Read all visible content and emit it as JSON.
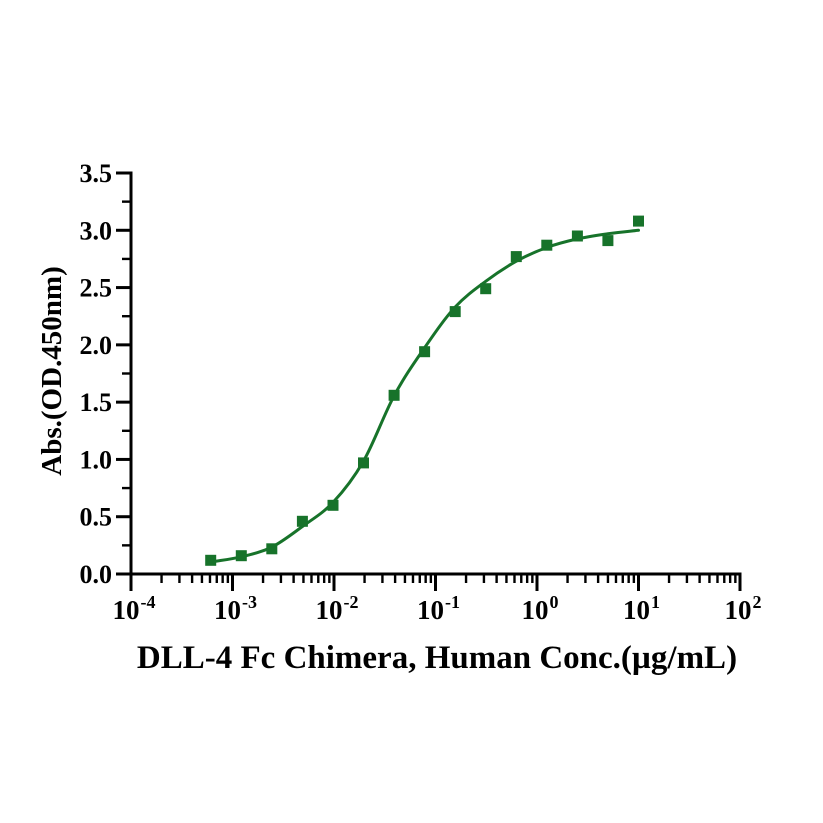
{
  "figure": {
    "background_color": "#ffffff",
    "text_color": "#000000"
  },
  "chart_data": {
    "type": "scatter",
    "title": "",
    "xlabel": "DLL-4 Fc Chimera, Human Conc.(µg/mL)",
    "ylabel": "Abs.(OD.450nm)",
    "x_scale": "log10",
    "x_tick_base": "10",
    "x_tick_exponents": [
      -4,
      -3,
      -2,
      -1,
      0,
      1,
      2
    ],
    "xlim_exponents": [
      -4,
      2
    ],
    "ylim": [
      0.0,
      3.5
    ],
    "y_major_ticks": [
      0.0,
      0.5,
      1.0,
      1.5,
      2.0,
      2.5,
      3.0,
      3.5
    ],
    "y_minor_step": 0.25,
    "grid": false,
    "legend": null,
    "series": [
      {
        "marker": "square",
        "color": "#17732a",
        "points": [
          {
            "x": 0.00061,
            "y": 0.12
          },
          {
            "x": 0.00122,
            "y": 0.16
          },
          {
            "x": 0.00244,
            "y": 0.22
          },
          {
            "x": 0.00488,
            "y": 0.46
          },
          {
            "x": 0.00977,
            "y": 0.6
          },
          {
            "x": 0.01953,
            "y": 0.97
          },
          {
            "x": 0.03906,
            "y": 1.56
          },
          {
            "x": 0.07813,
            "y": 1.94
          },
          {
            "x": 0.15625,
            "y": 2.29
          },
          {
            "x": 0.3125,
            "y": 2.49
          },
          {
            "x": 0.625,
            "y": 2.77
          },
          {
            "x": 1.25,
            "y": 2.87
          },
          {
            "x": 2.5,
            "y": 2.95
          },
          {
            "x": 5,
            "y": 2.91
          },
          {
            "x": 10,
            "y": 3.08
          }
        ],
        "fit_curve": [
          {
            "x": 0.00061,
            "y": 0.105
          },
          {
            "x": 0.00122,
            "y": 0.15
          },
          {
            "x": 0.00244,
            "y": 0.235
          },
          {
            "x": 0.00488,
            "y": 0.415
          },
          {
            "x": 0.00977,
            "y": 0.625
          },
          {
            "x": 0.01953,
            "y": 0.985
          },
          {
            "x": 0.03906,
            "y": 1.555
          },
          {
            "x": 0.07813,
            "y": 1.975
          },
          {
            "x": 0.15625,
            "y": 2.33
          },
          {
            "x": 0.3125,
            "y": 2.555
          },
          {
            "x": 0.625,
            "y": 2.73
          },
          {
            "x": 1.25,
            "y": 2.85
          },
          {
            "x": 2.5,
            "y": 2.925
          },
          {
            "x": 5,
            "y": 2.97
          },
          {
            "x": 10,
            "y": 3.0
          }
        ]
      }
    ]
  }
}
